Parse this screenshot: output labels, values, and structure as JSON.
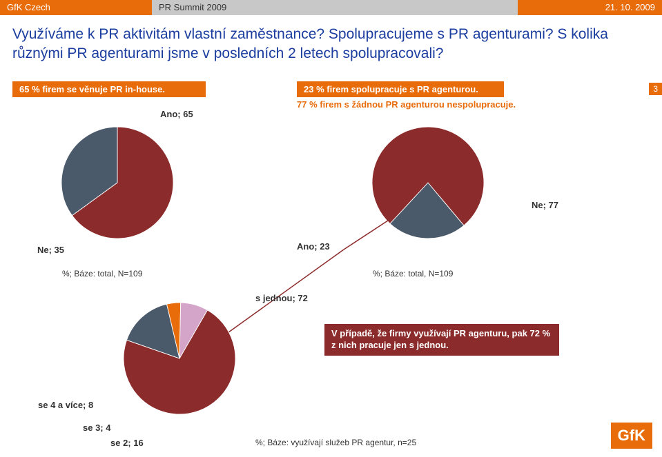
{
  "header": {
    "left": "GfK Czech",
    "mid": "PR Summit 2009",
    "right": "21. 10. 2009"
  },
  "title": "Využíváme k PR aktivitám vlastní zaměstnance? Spolupracujeme s PR agenturami? S kolika různými PR agenturami jsme v posledních 2 letech spolupracovali?",
  "page_number": "3",
  "stat_left": "65 % firem se věnuje PR in-house.",
  "stat_right": "23 % firem spolupracuje s PR agenturou.",
  "stat_sub": "77 % firem s žádnou PR agenturou nespolupracuje.",
  "pie1": {
    "type": "pie",
    "slices": [
      {
        "label": "Ano; 65",
        "value": 65,
        "color": "#8c2b2b"
      },
      {
        "label": "Ne; 35",
        "value": 35,
        "color": "#4a5a6a"
      }
    ],
    "base": "%; Báze: total, N=109"
  },
  "pie2": {
    "type": "pie",
    "slices": [
      {
        "label": "Ano; 23",
        "value": 23,
        "color": "#4a5a6a"
      },
      {
        "label": "Ne; 77",
        "value": 77,
        "color": "#8c2b2b"
      }
    ],
    "base": "%; Báze: total, N=109"
  },
  "pie3": {
    "type": "pie",
    "slices": [
      {
        "label": "s jednou; 72",
        "value": 72,
        "color": "#8c2b2b"
      },
      {
        "label": "se 2; 16",
        "value": 16,
        "color": "#4a5a6a"
      },
      {
        "label": "se 3; 4",
        "value": 4,
        "color": "#e86c0a"
      },
      {
        "label": "se 4 a více; 8",
        "value": 8,
        "color": "#d4a5c8"
      }
    ],
    "base": "%; Báze: využívají služeb PR agentur, n=25"
  },
  "callout": "V případě, že firmy využívají PR agenturu, pak  72 % z nich pracuje jen s jednou.",
  "logo": "GfK",
  "colors": {
    "brand": "#e86c0a",
    "maroon": "#8c2b2b",
    "slate": "#4a5a6a",
    "title_blue": "#1a3d9f",
    "header_mid": "#c8c8c8"
  }
}
